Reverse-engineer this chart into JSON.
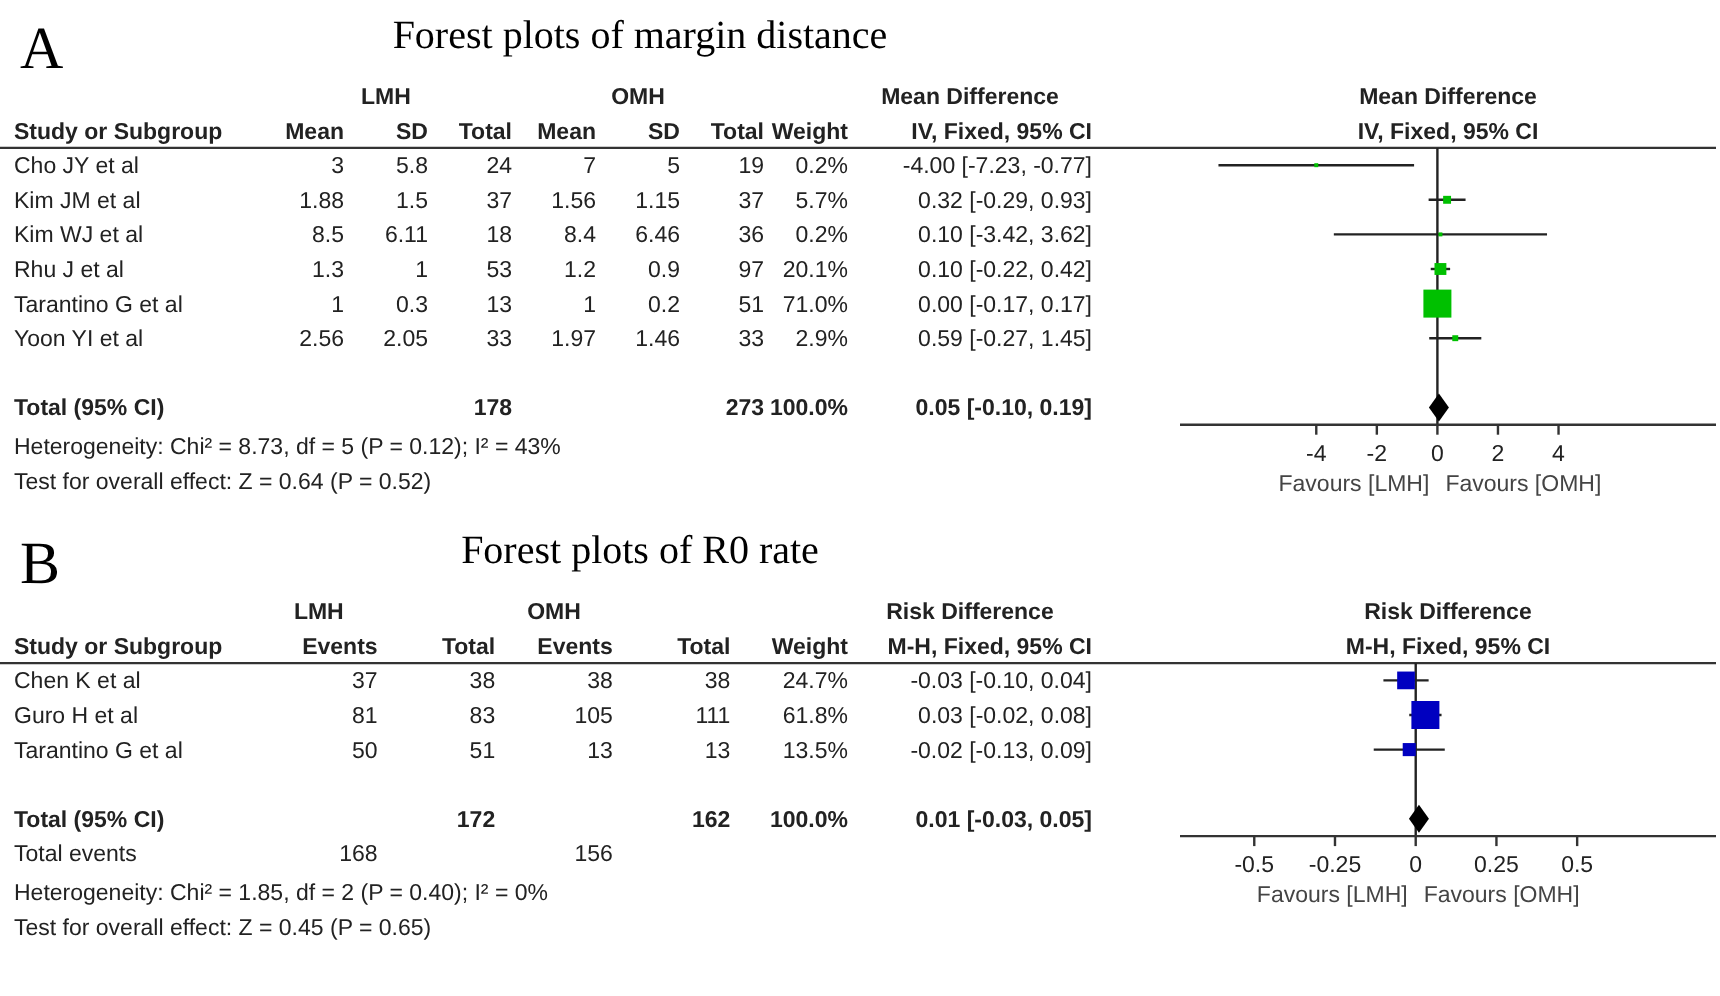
{
  "chart_data": [
    {
      "type": "other",
      "title": "Forest plots of margin distance",
      "annotations": [
        "A",
        "Heterogeneity: Chi² = 8.73, df = 5 (P = 0.12); I² = 43%",
        "Test for overall effect: Z = 0.64 (P = 0.52)"
      ],
      "cell_labels": [
        [
          null,
          null,
          "LMH",
          null,
          null,
          "OMH",
          null,
          null,
          "Mean Difference"
        ],
        [
          "Study or Subgroup",
          "Mean",
          "SD",
          "Total",
          "Mean",
          "SD",
          "Total",
          "Weight",
          "IV, Fixed, 95% CI"
        ],
        [
          "Cho JY et al",
          "3",
          "5.8",
          "24",
          "7",
          "5",
          "19",
          "0.2%",
          "-4.00 [-7.23, -0.77]"
        ],
        [
          "Kim JM et al",
          "1.88",
          "1.5",
          "37",
          "1.56",
          "1.15",
          "37",
          "5.7%",
          "0.32 [-0.29, 0.93]"
        ],
        [
          "Kim WJ  et al",
          "8.5",
          "6.11",
          "18",
          "8.4",
          "6.46",
          "36",
          "0.2%",
          "0.10 [-3.42, 3.62]"
        ],
        [
          "Rhu J et al",
          "1.3",
          "1",
          "53",
          "1.2",
          "0.9",
          "97",
          "20.1%",
          "0.10 [-0.22, 0.42]"
        ],
        [
          "Tarantino G  et al",
          "1",
          "0.3",
          "13",
          "1",
          "0.2",
          "51",
          "71.0%",
          "0.00 [-0.17, 0.17]"
        ],
        [
          "Yoon YI et al",
          "2.56",
          "2.05",
          "33",
          "1.97",
          "1.46",
          "33",
          "2.9%",
          "0.59 [-0.27, 1.45]"
        ],
        [
          null,
          null,
          null,
          null,
          null,
          null,
          null,
          null,
          null
        ],
        [
          "Total (95% CI)",
          null,
          null,
          "178",
          null,
          null,
          "273",
          "100.0%",
          "0.05 [-0.10, 0.19]"
        ]
      ]
    },
    {
      "type": "scatter",
      "orientation": "horizontal",
      "title": "Mean Difference",
      "subtitle": "IV, Fixed, 95% CI",
      "categories": [
        null,
        null,
        null,
        null,
        null,
        null,
        null,
        null
      ],
      "xlim": [
        -8.5,
        9.2
      ],
      "xticks": [
        -4,
        -2,
        0,
        2,
        4
      ],
      "tick_labels": "x",
      "ref_lines": [
        {
          "axis": "x",
          "value": 0
        }
      ],
      "annotations": [
        "Favours [LMH]",
        "Favours [OMH]"
      ],
      "series": [
        {
          "color": "#00c000",
          "marker": "square",
          "values": [
            -4.0,
            0.32,
            0.1,
            0.1,
            0.0,
            0.59,
            null,
            null
          ],
          "errors": [
            [
              -7.23,
              -0.77
            ],
            [
              -0.29,
              0.93
            ],
            [
              -3.42,
              3.62
            ],
            [
              -0.22,
              0.42
            ],
            null,
            [
              -0.27,
              1.45
            ],
            null,
            null
          ],
          "sizes": [
            0.02,
            0.08,
            0.02,
            0.18,
            1,
            0.045,
            null,
            null
          ]
        },
        {
          "color": "#000000",
          "marker": "diamond",
          "values": [
            null,
            null,
            null,
            null,
            null,
            null,
            null,
            0.05
          ]
        }
      ]
    },
    {
      "type": "other",
      "title": "Forest plots of R0 rate",
      "annotations": [
        "B",
        "Heterogeneity: Chi² = 1.85, df = 2 (P = 0.40); I² = 0%",
        "Test for overall effect: Z = 0.45 (P = 0.65)"
      ],
      "cell_labels": [
        [
          null,
          "LMH",
          null,
          "OMH",
          null,
          null,
          "Risk Difference"
        ],
        [
          "Study or Subgroup",
          "Events",
          "Total",
          "Events",
          "Total",
          "Weight",
          "M-H, Fixed, 95% CI"
        ],
        [
          "Chen K et al",
          "37",
          "38",
          "38",
          "38",
          "24.7%",
          "-0.03 [-0.10, 0.04]"
        ],
        [
          "Guro H et al",
          "81",
          "83",
          "105",
          "111",
          "61.8%",
          "0.03 [-0.02, 0.08]"
        ],
        [
          "Tarantino G  et al",
          "50",
          "51",
          "13",
          "13",
          "13.5%",
          "-0.02 [-0.13, 0.09]"
        ],
        [
          null,
          null,
          null,
          null,
          null,
          null,
          null
        ],
        [
          "Total (95% CI)",
          null,
          "172",
          null,
          "162",
          "100.0%",
          "0.01 [-0.03, 0.05]"
        ],
        [
          "Total events",
          "168",
          null,
          "156",
          null,
          null,
          null
        ]
      ]
    },
    {
      "type": "scatter",
      "orientation": "horizontal",
      "title": "Risk Difference",
      "subtitle": "M-H, Fixed, 95% CI",
      "categories": [
        null,
        null,
        null,
        null,
        null
      ],
      "xlim": [
        -0.73,
        0.93
      ],
      "xticks": [
        -0.5,
        -0.25,
        0,
        0.25,
        0.5
      ],
      "tick_labels": "x",
      "ref_lines": [
        {
          "axis": "x",
          "value": 0
        }
      ],
      "annotations": [
        "Favours [LMH]",
        "Favours [OMH]"
      ],
      "series": [
        {
          "color": "#0000c0",
          "marker": "square",
          "values": [
            -0.03,
            0.03,
            -0.02,
            null,
            null
          ],
          "errors": [
            [
              -0.1,
              0.04
            ],
            [
              -0.02,
              0.08
            ],
            [
              -0.13,
              0.09
            ],
            null,
            null
          ],
          "sizes": [
            0.4,
            1,
            0.218,
            null,
            null
          ]
        },
        {
          "color": "#000000",
          "marker": "diamond",
          "values": [
            null,
            null,
            null,
            null,
            0.01
          ]
        }
      ]
    }
  ]
}
